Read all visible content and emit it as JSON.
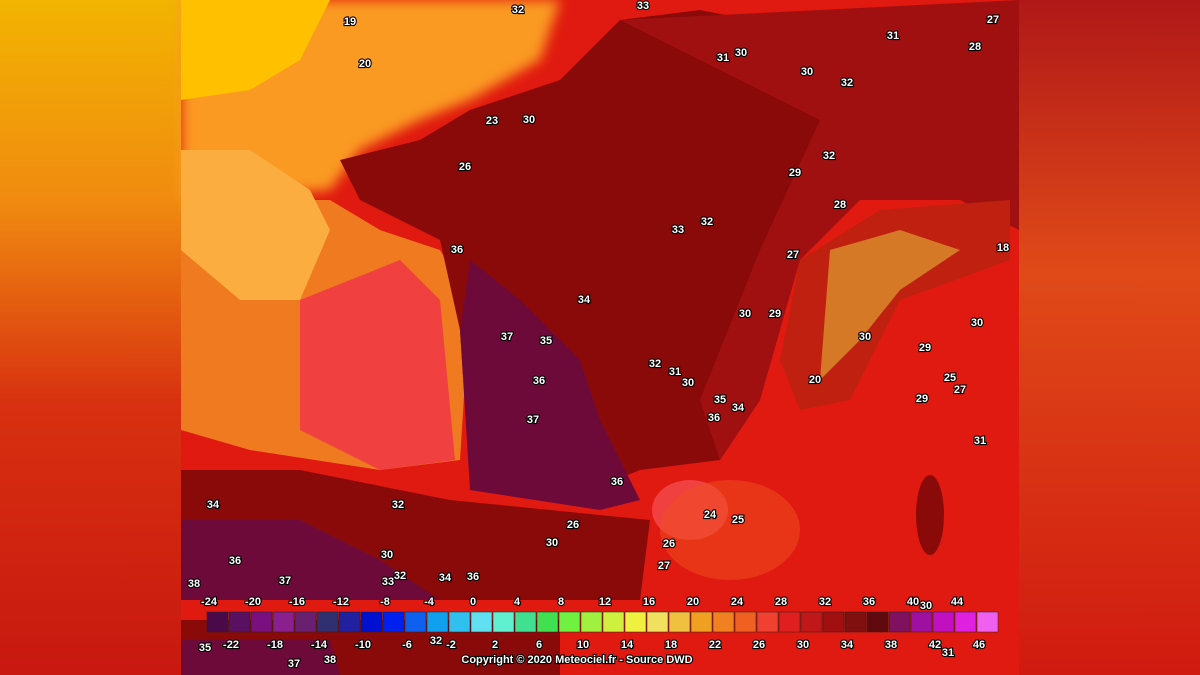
{
  "map": {
    "labels": [
      "19",
      "32",
      "33",
      "27",
      "20",
      "31",
      "28",
      "30",
      "31",
      "30",
      "32",
      "23",
      "30",
      "26",
      "32",
      "29",
      "28",
      "33",
      "32",
      "36",
      "27",
      "18",
      "34",
      "30",
      "29",
      "30",
      "30",
      "37",
      "35",
      "29",
      "32",
      "31",
      "30",
      "36",
      "25",
      "27",
      "20",
      "35",
      "34",
      "29",
      "37",
      "36",
      "31",
      "36",
      "34",
      "32",
      "24",
      "25",
      "26",
      "30",
      "26",
      "36",
      "30",
      "27",
      "37",
      "33",
      "32",
      "34",
      "36",
      "38",
      "38",
      "35",
      "37",
      "32",
      "31",
      "30"
    ],
    "scale_top": [
      -24,
      -20,
      -16,
      -12,
      -8,
      -4,
      0,
      4,
      8,
      12,
      16,
      20,
      24,
      28,
      32,
      36,
      40,
      44
    ],
    "scale_bottom": [
      -22,
      -18,
      -14,
      -10,
      -6,
      -2,
      2,
      6,
      10,
      14,
      18,
      22,
      26,
      30,
      34,
      38,
      42,
      46
    ],
    "copyright": "Copyright © 2020 Meteociel.fr - Source DWD"
  }
}
